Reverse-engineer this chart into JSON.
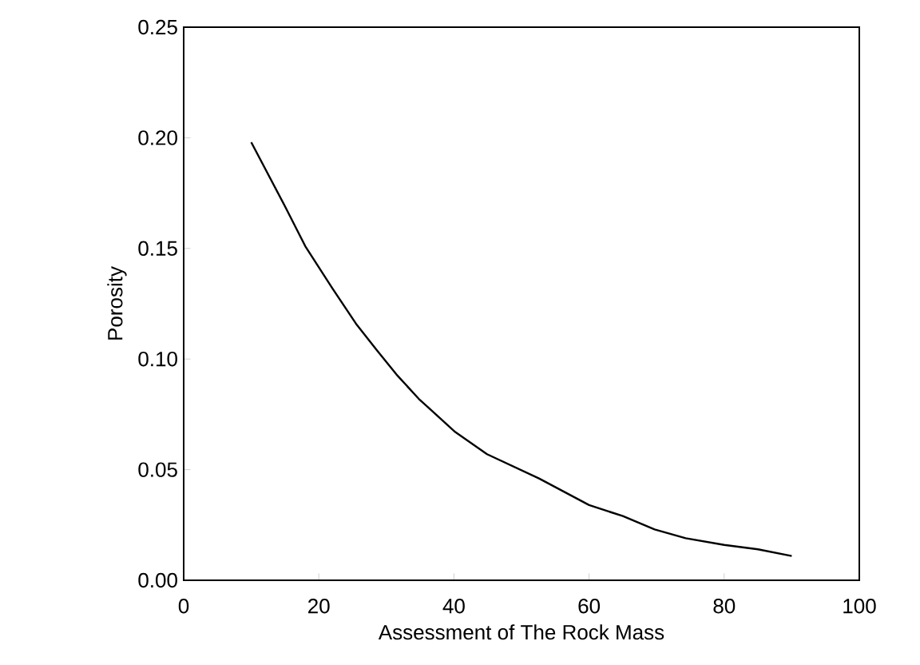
{
  "chart_data": {
    "type": "line",
    "xlabel": "Assessment of The Rock Mass",
    "ylabel": "Porosity",
    "x": [
      10,
      15,
      18,
      22,
      25.5,
      28.6,
      31.5,
      34.8,
      40.2,
      44.9,
      52.6,
      60,
      65,
      69.7,
      74.3,
      80,
      85,
      90
    ],
    "values": [
      0.198,
      0.169,
      0.151,
      0.132,
      0.116,
      0.104,
      0.093,
      0.082,
      0.067,
      0.057,
      0.046,
      0.034,
      0.029,
      0.023,
      0.019,
      0.016,
      0.014,
      0.011
    ],
    "color": "#000000",
    "xlim": [
      0,
      100
    ],
    "ylim": [
      0,
      0.25
    ],
    "xticks": [
      0,
      20,
      40,
      60,
      80,
      100
    ],
    "yticks": [
      {
        "value": 0,
        "label": "0.00"
      },
      {
        "value": 0.05,
        "label": "0.05"
      },
      {
        "value": 0.1,
        "label": "0.10"
      },
      {
        "value": 0.15,
        "label": "0.15"
      },
      {
        "value": 0.2,
        "label": "0.20"
      },
      {
        "value": 0.25,
        "label": "0.25"
      }
    ],
    "grid": false,
    "marker": "none",
    "line_style": "solid"
  }
}
